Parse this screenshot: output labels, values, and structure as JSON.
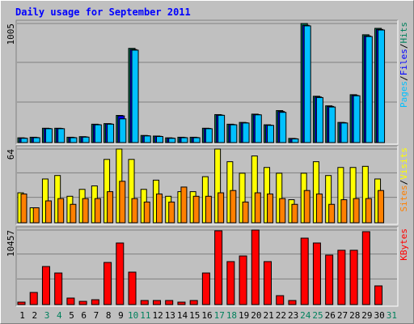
{
  "chart_data": {
    "type": "bar",
    "title": "Daily usage for September 2011",
    "legend_separator": "/",
    "categories": [
      1,
      2,
      3,
      4,
      5,
      6,
      7,
      8,
      9,
      10,
      11,
      12,
      13,
      14,
      15,
      16,
      17,
      18,
      19,
      20,
      21,
      22,
      23,
      24,
      25,
      26,
      27,
      28,
      29,
      30,
      31
    ],
    "category_colors": [
      "#000000",
      "#000000",
      "#00805c",
      "#00805c",
      "#000000",
      "#000000",
      "#000000",
      "#000000",
      "#000000",
      "#00805c",
      "#00805c",
      "#000000",
      "#000000",
      "#000000",
      "#000000",
      "#000000",
      "#00805c",
      "#00805c",
      "#000000",
      "#000000",
      "#000000",
      "#000000",
      "#000000",
      "#00805c",
      "#00805c",
      "#000000",
      "#000000",
      "#000000",
      "#000000",
      "#000000",
      "#00805c"
    ],
    "panels": [
      {
        "ylim": [
          0,
          1005
        ],
        "yticks": [
          1005
        ],
        "series": [
          {
            "name": "Hits",
            "color": "#00805c",
            "values": [
              40,
              45,
              121,
              121,
              45,
              50,
              155,
              160,
              229,
              795,
              60,
              55,
              40,
              45,
              45,
              121,
              236,
              155,
              170,
              240,
              150,
              270,
              35,
              1005,
              391,
              310,
              170,
              404,
              910,
              964,
              null
            ]
          },
          {
            "name": "Files",
            "color": "#0000ff",
            "values": [
              38,
              43,
              119,
              119,
              43,
              48,
              152,
              158,
              225,
              785,
              58,
              53,
              38,
              43,
              43,
              119,
              232,
              152,
              167,
              236,
              147,
              262,
              33,
              990,
              385,
              305,
              168,
              398,
              900,
              955,
              null
            ]
          },
          {
            "name": "Pages",
            "color": "#00c0ff",
            "values": [
              36,
              41,
              117,
              117,
              41,
              46,
              150,
              155,
              200,
              780,
              56,
              51,
              36,
              41,
              41,
              117,
              230,
              150,
              165,
              234,
              145,
              255,
              31,
              985,
              380,
              300,
              165,
              395,
              895,
              950,
              null
            ]
          }
        ]
      },
      {
        "ylim": [
          0,
          64
        ],
        "yticks": [
          64
        ],
        "series": [
          {
            "name": "Visits",
            "color": "#ffff00",
            "values": [
              26,
              13,
              38,
              41,
              23,
              29,
              32,
              55,
              64,
              55,
              29,
              37,
              23,
              27,
              27,
              40,
              64,
              53,
              43,
              58,
              48,
              43,
              20,
              43,
              53,
              41,
              48,
              48,
              49,
              38,
              null
            ]
          },
          {
            "name": "Sites",
            "color": "#ff8000",
            "values": [
              25,
              13,
              19,
              21,
              16,
              21,
              21,
              27,
              36,
              21,
              18,
              25,
              18,
              31,
              23,
              23,
              26,
              28,
              18,
              26,
              25,
              21,
              16,
              28,
              25,
              16,
              20,
              21,
              21,
              28,
              null
            ]
          }
        ]
      },
      {
        "ylim": [
          0,
          10457
        ],
        "yticks": [
          10457
        ],
        "series": [
          {
            "name": "KBytes",
            "color": "#ff0000",
            "values": [
              340,
              1700,
              5340,
              4430,
              910,
              450,
              680,
              5910,
              8640,
              4550,
              570,
              570,
              570,
              340,
              570,
              4430,
              10350,
              6030,
              6820,
              10457,
              6030,
              1250,
              570,
              9320,
              8640,
              6940,
              7620,
              7620,
              10230,
              2620,
              null
            ]
          }
        ]
      }
    ]
  }
}
